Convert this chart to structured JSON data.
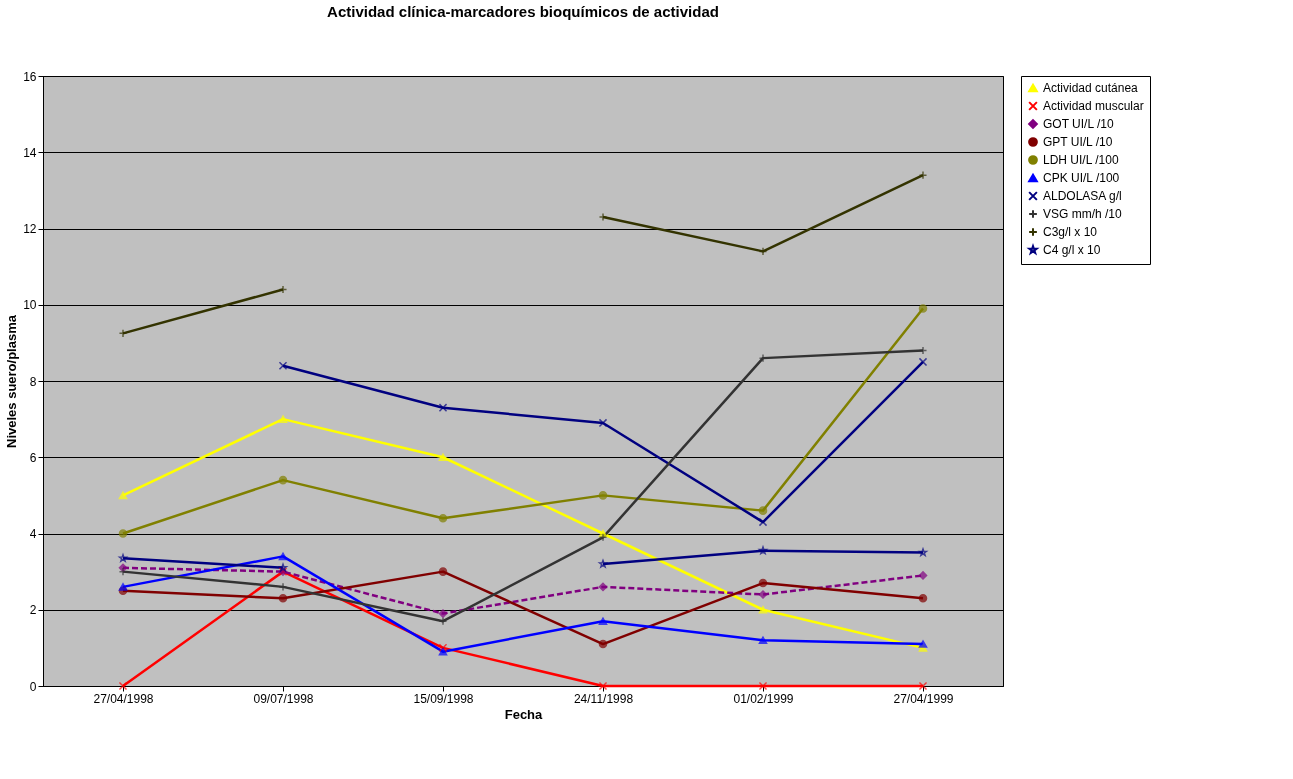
{
  "chart_data": {
    "type": "line",
    "title": "Actividad clínica-marcadores bioquímicos de actividad",
    "xlabel": "Fecha",
    "ylabel": "Niveles suero/plasma",
    "categories": [
      "27/04/1998",
      "09/07/1998",
      "15/09/1998",
      "24/11/1998",
      "01/02/1999",
      "27/04/1999"
    ],
    "ylim": [
      0,
      16
    ],
    "yticks": [
      0,
      2,
      4,
      6,
      8,
      10,
      12,
      14,
      16
    ],
    "grid": "y",
    "legend": "right",
    "series": [
      {
        "name": "Actividad cutánea",
        "color": "#ffff00",
        "marker": "triangle",
        "line_style": "solid",
        "values": [
          5,
          7,
          6,
          4,
          2,
          1
        ]
      },
      {
        "name": "Actividad muscular",
        "color": "#ff0000",
        "marker": "cross",
        "line_style": "solid",
        "values": [
          0,
          3,
          1,
          0,
          0,
          0
        ]
      },
      {
        "name": "GOT UI/L /10",
        "color": "#800080",
        "marker": "diamond",
        "line_style": "dashed",
        "values": [
          3.1,
          3.0,
          1.9,
          2.6,
          2.4,
          2.9
        ]
      },
      {
        "name": "GPT UI/L /10",
        "color": "#800000",
        "marker": "circle",
        "line_style": "solid",
        "values": [
          2.5,
          2.3,
          3.0,
          1.1,
          2.7,
          2.3
        ]
      },
      {
        "name": "LDH UI/L /100",
        "color": "#808000",
        "marker": "circle",
        "line_style": "solid",
        "values": [
          4.0,
          5.4,
          4.4,
          5.0,
          4.6,
          9.9
        ]
      },
      {
        "name": "CPK UI/L /100",
        "color": "#0000ff",
        "marker": "triangle",
        "line_style": "solid",
        "values": [
          2.6,
          3.4,
          0.9,
          1.7,
          1.2,
          1.1
        ]
      },
      {
        "name": "ALDOLASA g/l",
        "color": "#000080",
        "marker": "cross",
        "line_style": "solid",
        "values": [
          null,
          8.4,
          7.3,
          6.9,
          4.3,
          8.5
        ]
      },
      {
        "name": "VSG mm/h /10",
        "color": "#333333",
        "marker": "plus",
        "line_style": "solid",
        "values": [
          3.0,
          2.6,
          1.7,
          3.9,
          8.6,
          8.8
        ]
      },
      {
        "name": "C3g/l x 10",
        "color": "#333300",
        "marker": "plus",
        "line_style": "solid",
        "values": [
          9.25,
          10.4,
          null,
          12.3,
          11.4,
          13.4
        ]
      },
      {
        "name": "C4 g/l x 10",
        "color": "#000080",
        "marker": "star",
        "line_style": "solid",
        "values": [
          3.35,
          3.1,
          null,
          3.2,
          3.55,
          3.5
        ]
      }
    ]
  }
}
